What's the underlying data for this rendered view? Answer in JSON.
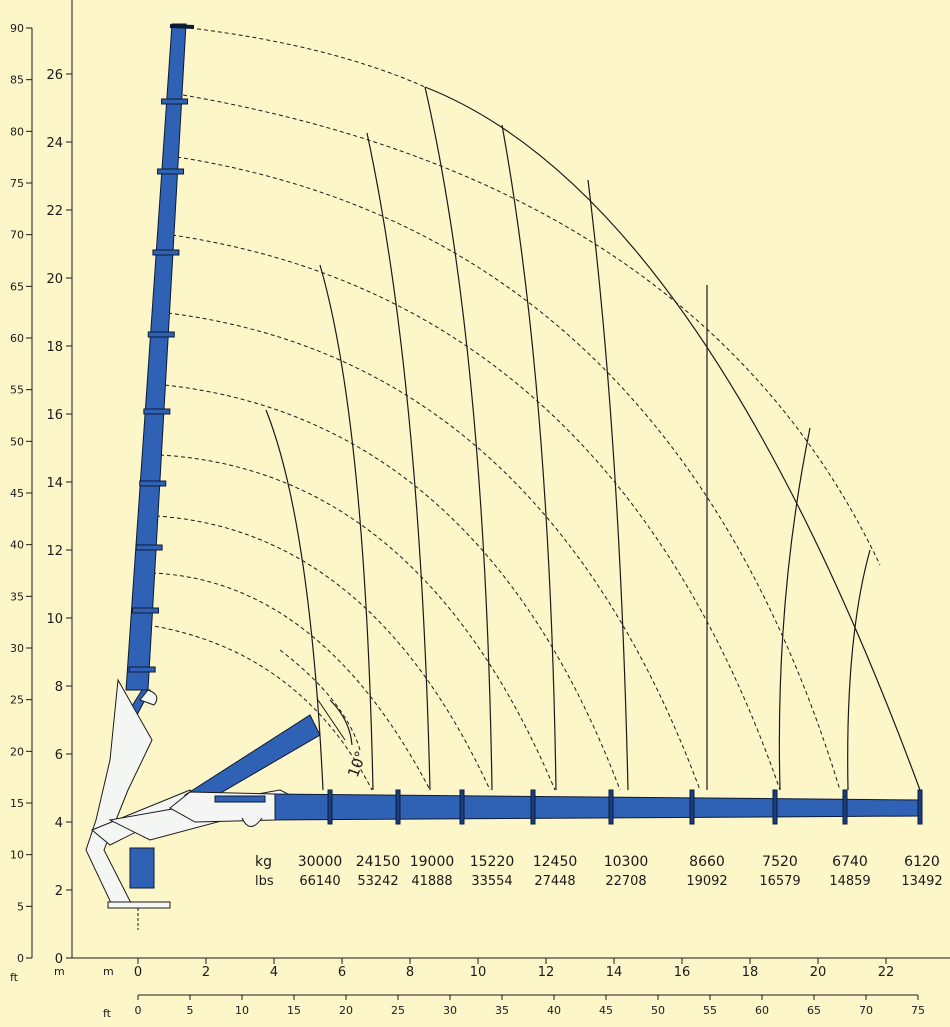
{
  "axes": {
    "left_ft_unit": "ft",
    "left_m_unit": "m",
    "left_ft_ticks": [
      "0",
      "5",
      "10",
      "15",
      "20",
      "25",
      "30",
      "35",
      "40",
      "45",
      "50",
      "55",
      "60",
      "65",
      "70",
      "75",
      "80",
      "85",
      "90"
    ],
    "left_m_ticks": [
      "0",
      "2",
      "4",
      "6",
      "8",
      "10",
      "12",
      "14",
      "16",
      "18",
      "20",
      "22",
      "24",
      "26"
    ],
    "bottom_m_unit": "m",
    "bottom_ft_unit": "ft",
    "bottom_m_ticks": [
      "0",
      "2",
      "4",
      "6",
      "8",
      "10",
      "12",
      "14",
      "16",
      "18",
      "20",
      "22"
    ],
    "bottom_ft_ticks": [
      "0",
      "5",
      "10",
      "15",
      "20",
      "25",
      "30",
      "35",
      "40",
      "45",
      "50",
      "55",
      "60",
      "65",
      "70",
      "75"
    ]
  },
  "loads": {
    "kg_label": "kg",
    "lbs_label": "lbs",
    "kg": [
      "30000",
      "24150",
      "19000",
      "15220",
      "12450",
      "10300",
      "8660",
      "7520",
      "6740",
      "6120"
    ],
    "lbs": [
      "66140",
      "53242",
      "41888",
      "33554",
      "27448",
      "22708",
      "19092",
      "16579",
      "14859",
      "13492"
    ]
  },
  "angle_label": "10°",
  "colors": {
    "background": "#fdf6c9",
    "boom": "#2f62b4"
  }
}
